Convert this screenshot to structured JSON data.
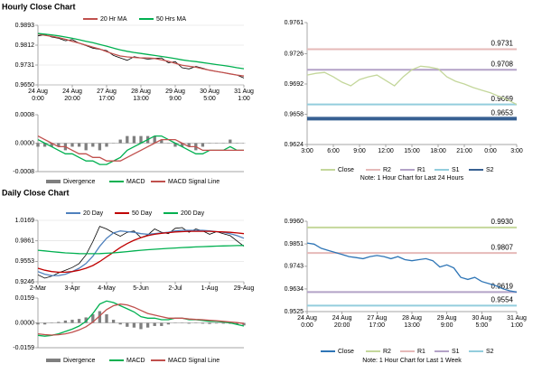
{
  "sections": [
    {
      "title": "Hourly Close Chart"
    },
    {
      "title": "Daily Close Chart"
    }
  ],
  "chart_data": [
    {
      "type": "line",
      "grid": true,
      "categories": [
        "24 Aug 0:00",
        null,
        null,
        null,
        null,
        "24 Aug 20:00",
        null,
        null,
        null,
        null,
        "27 Aug 17:00",
        null,
        null,
        null,
        null,
        "28 Aug 13:00",
        null,
        null,
        null,
        null,
        "29 Aug 9:00",
        null,
        null,
        null,
        null,
        "30 Aug 5:00",
        null,
        null,
        null,
        null,
        "31 Aug 1:00"
      ],
      "ylim": [
        0.965,
        0.9893
      ],
      "yticks": [
        {
          "value": 0.965,
          "label": "0.9650"
        },
        0.9731,
        0.9812,
        0.9893
      ],
      "series": [
        {
          "color": "#000000",
          "values": [
            0.985,
            0.9855,
            0.9845,
            0.984,
            0.983,
            0.9835,
            0.982,
            0.981,
            0.98,
            0.9795,
            0.979,
            0.977,
            0.976,
            0.975,
            0.9765,
            0.976,
            0.9755,
            0.9758,
            0.976,
            0.974,
            0.9745,
            0.972,
            0.9715,
            0.9725,
            0.9718,
            0.971,
            0.9705,
            0.97,
            0.9695,
            0.969,
            0.9678
          ]
        },
        {
          "name": "20 Hr MA",
          "color": "#c0504d",
          "values": [
            0.9858,
            0.9852,
            0.9848,
            0.9843,
            0.9836,
            0.9828,
            0.982,
            0.9812,
            0.9804,
            0.9796,
            0.9786,
            0.9776,
            0.9768,
            0.9764,
            0.9762,
            0.976,
            0.976,
            0.9758,
            0.9752,
            0.9746,
            0.9738,
            0.973,
            0.9726,
            0.9722,
            0.9716,
            0.971,
            0.9705,
            0.97,
            0.9695,
            0.969,
            0.9686
          ]
        },
        {
          "name": "50 Hrs MA",
          "color": "#00b050",
          "values": [
            0.986,
            0.9857,
            0.9854,
            0.985,
            0.9845,
            0.984,
            0.9834,
            0.9828,
            0.9822,
            0.9815,
            0.9808,
            0.98,
            0.9793,
            0.9787,
            0.9782,
            0.9778,
            0.9774,
            0.977,
            0.9766,
            0.9762,
            0.9757,
            0.9752,
            0.9748,
            0.9745,
            0.9741,
            0.9737,
            0.9733,
            0.9729,
            0.9725,
            0.972,
            0.9716
          ]
        }
      ]
    },
    {
      "type": "line",
      "grid": false,
      "ylim": [
        -0.0008,
        0.0008
      ],
      "yticks": [
        -0.0008,
        {
          "value": 0,
          "label": "0.0000"
        },
        0.0008
      ],
      "series": [
        {
          "name": "Divergence",
          "kind": "bar",
          "color": "#7f7f7f",
          "values": [
            -0.0001,
            -0.0001,
            -0.0001,
            -0.0001,
            -0.0002,
            -0.0001,
            -0.0001,
            -0.0002,
            -0.0001,
            -0.0002,
            -0.0001,
            0,
            0.0001,
            0.0002,
            0.0002,
            0.0002,
            0.0002,
            0.0002,
            0.0001,
            0,
            -0.0001,
            -0.0001,
            -0.0001,
            -0.0002,
            -0.0001,
            0,
            0,
            0,
            0.0001,
            0,
            0
          ]
        },
        {
          "name": "MACD",
          "color": "#00b050",
          "values": [
            0.0001,
            0,
            -0.0001,
            -0.0002,
            -0.0003,
            -0.0003,
            -0.0004,
            -0.0005,
            -0.0005,
            -0.0006,
            -0.0006,
            -0.0005,
            -0.0004,
            -0.0002,
            -0.0001,
            0,
            0.0001,
            0.0002,
            0.0002,
            0.0001,
            0,
            -0.0001,
            -0.0002,
            -0.0003,
            -0.0003,
            -0.0002,
            -0.0002,
            -0.0002,
            -0.0001,
            -0.0002,
            -0.0002
          ]
        },
        {
          "name": "MACD Signal Line",
          "color": "#c0504d",
          "values": [
            0.0002,
            0.0001,
            0,
            -0.0001,
            -0.0001,
            -0.0002,
            -0.0003,
            -0.0003,
            -0.0004,
            -0.0004,
            -0.0005,
            -0.0005,
            -0.0005,
            -0.0004,
            -0.0003,
            -0.0002,
            -0.0001,
            0,
            0.0001,
            0.0001,
            0.0001,
            0,
            -0.0001,
            -0.0001,
            -0.0002,
            -0.0002,
            -0.0002,
            -0.0002,
            -0.0002,
            -0.0002,
            -0.0002
          ]
        }
      ]
    },
    {
      "type": "line",
      "grid": false,
      "note": "Note: 1 Hour Chart for Last 24 Hours",
      "categories": [
        "3:00",
        null,
        null,
        "6:00",
        null,
        null,
        "9:00",
        null,
        null,
        "12:00",
        null,
        null,
        "15:00",
        null,
        null,
        "18:00",
        null,
        null,
        "21:00",
        null,
        null,
        "0:00",
        null,
        null,
        "3:00"
      ],
      "ylim": [
        0.9624,
        0.9761
      ],
      "yticks": [
        0.9624,
        0.9658,
        0.9692,
        0.9726,
        0.9761
      ],
      "series": [
        {
          "name": "Close",
          "color": "#c4d79b",
          "values": [
            0.9702,
            0.9704,
            0.9705,
            0.97,
            0.9694,
            0.969,
            0.9697,
            0.97,
            0.9702,
            0.9696,
            0.969,
            0.97,
            0.9708,
            0.9712,
            0.9711,
            0.9709,
            0.97,
            0.9695,
            0.9692,
            0.9688,
            0.9685,
            0.9682,
            0.9678,
            0.9674,
            0.9669
          ]
        }
      ],
      "levels": [
        {
          "name": "R2",
          "color": "#e6b9b8",
          "value": 0.9731
        },
        {
          "name": "R1",
          "color": "#b3a2c7",
          "value": 0.9708
        },
        {
          "name": "S1",
          "color": "#93cddd",
          "value": 0.9669
        },
        {
          "name": "S2",
          "color": "#376092",
          "value": 0.9653
        }
      ]
    },
    {
      "type": "line",
      "grid": true,
      "categories": [
        "2-Mar",
        null,
        null,
        null,
        null,
        "3-Apr",
        null,
        null,
        null,
        null,
        "4-May",
        null,
        null,
        null,
        null,
        "5-Jun",
        null,
        null,
        null,
        null,
        "2-Jul",
        null,
        null,
        null,
        null,
        "1-Aug",
        null,
        null,
        null,
        null,
        "29-Aug"
      ],
      "ylim": [
        0.9246,
        1.0169
      ],
      "yticks": [
        0.9246,
        0.9553,
        0.9861,
        1.0169
      ],
      "series": [
        {
          "color": "#000000",
          "values": [
            0.935,
            0.93,
            0.933,
            0.938,
            0.942,
            0.946,
            0.952,
            0.965,
            0.985,
            1.008,
            1.004,
            0.998,
            0.993,
            0.999,
            1.001,
            0.991,
            0.995,
            1.004,
            0.999,
            0.997,
            1.005,
            1.006,
            0.999,
            1.004,
            1.001,
            0.996,
            1.0,
            0.997,
            0.994,
            0.986,
            0.978
          ]
        },
        {
          "name": "20 Day",
          "color": "#4f81bd",
          "values": [
            0.94,
            0.936,
            0.934,
            0.934,
            0.936,
            0.94,
            0.945,
            0.952,
            0.963,
            0.978,
            0.99,
            0.998,
            1.001,
            1.0,
            0.999,
            0.997,
            0.996,
            0.997,
            0.998,
            0.999,
            1.001,
            1.002,
            1.002,
            1.002,
            1.002,
            1.001,
            1.0,
            0.999,
            0.997,
            0.994,
            0.99
          ]
        },
        {
          "name": "50 Day",
          "color": "#c00000",
          "values": [
            0.945,
            0.942,
            0.94,
            0.939,
            0.939,
            0.94,
            0.942,
            0.945,
            0.949,
            0.955,
            0.962,
            0.969,
            0.976,
            0.982,
            0.987,
            0.991,
            0.994,
            0.996,
            0.9975,
            0.9985,
            0.9995,
            1.0,
            1.0005,
            1.0005,
            1.0005,
            1.0005,
            1.0,
            0.9995,
            0.999,
            0.998,
            0.997
          ]
        },
        {
          "name": "200 Day",
          "color": "#00b050",
          "values": [
            0.972,
            0.971,
            0.97,
            0.969,
            0.968,
            0.9675,
            0.967,
            0.9668,
            0.9668,
            0.967,
            0.9675,
            0.968,
            0.969,
            0.97,
            0.971,
            0.972,
            0.9728,
            0.9735,
            0.9742,
            0.9748,
            0.9754,
            0.976,
            0.9765,
            0.977,
            0.9774,
            0.9778,
            0.9782,
            0.9785,
            0.9788,
            0.979,
            0.9792
          ]
        }
      ]
    },
    {
      "type": "line",
      "grid": false,
      "ylim": [
        -0.0159,
        0.0159
      ],
      "yticks": [
        -0.0159,
        {
          "value": 0,
          "label": "0.0000"
        },
        0.0159
      ],
      "series": [
        {
          "name": "Divergence",
          "kind": "bar",
          "color": "#7f7f7f",
          "values": [
            -0.001,
            -0.001,
            -0.0002,
            0.0006,
            0.0015,
            0.002,
            0.0025,
            0.0035,
            0.0055,
            0.0075,
            0.0055,
            0.002,
            -0.001,
            -0.0025,
            -0.003,
            -0.004,
            -0.003,
            -0.002,
            -0.002,
            -0.001,
            0,
            0,
            -0.0005,
            -0.0002,
            -0.0005,
            -0.0007,
            -0.0004,
            -0.0005,
            -0.0006,
            -0.0012,
            -0.0016
          ]
        },
        {
          "name": "MACD",
          "color": "#00b050",
          "values": [
            -0.008,
            -0.0085,
            -0.008,
            -0.007,
            -0.0055,
            -0.004,
            -0.002,
            0.001,
            0.006,
            0.012,
            0.014,
            0.013,
            0.011,
            0.009,
            0.007,
            0.004,
            0.003,
            0.003,
            0.002,
            0.002,
            0.003,
            0.003,
            0.002,
            0.002,
            0.0015,
            0.001,
            0.001,
            0.0005,
            0,
            -0.001,
            -0.002
          ]
        },
        {
          "name": "MACD Signal Line",
          "color": "#c0504d",
          "values": [
            -0.007,
            -0.0075,
            -0.0078,
            -0.0076,
            -0.007,
            -0.006,
            -0.0045,
            -0.0025,
            0.0005,
            0.0045,
            0.0085,
            0.011,
            0.012,
            0.0115,
            0.01,
            0.008,
            0.006,
            0.005,
            0.004,
            0.003,
            0.003,
            0.003,
            0.0025,
            0.0022,
            0.002,
            0.0017,
            0.0014,
            0.001,
            0.0006,
            0.0002,
            -0.0004
          ]
        }
      ]
    },
    {
      "type": "line",
      "grid": false,
      "note": "Note: 1 Hour Chart for Last 1 Week",
      "categories": [
        "24 Aug 0:00",
        null,
        null,
        null,
        null,
        "24 Aug 20:00",
        null,
        null,
        null,
        null,
        "27 Aug 17:00",
        null,
        null,
        null,
        null,
        "28 Aug 13:00",
        null,
        null,
        null,
        null,
        "29 Aug 9:00",
        null,
        null,
        null,
        null,
        "30 Aug 5:00",
        null,
        null,
        null,
        null,
        "31 Aug 1:00"
      ],
      "ylim": [
        0.9525,
        0.996
      ],
      "yticks": [
        0.9525,
        0.9634,
        0.9743,
        0.9851,
        {
          "value": 0.996,
          "label": "0.9960"
        }
      ],
      "series": [
        {
          "name": "Close",
          "color": "#2e75b6",
          "values": [
            0.9855,
            0.985,
            0.983,
            0.982,
            0.981,
            0.98,
            0.979,
            0.9785,
            0.978,
            0.979,
            0.9795,
            0.979,
            0.978,
            0.979,
            0.9775,
            0.977,
            0.9775,
            0.978,
            0.977,
            0.974,
            0.975,
            0.9735,
            0.969,
            0.968,
            0.969,
            0.967,
            0.966,
            0.965,
            0.9635,
            0.9625,
            0.9619
          ]
        }
      ],
      "levels": [
        {
          "name": "R2",
          "color": "#c4d79b",
          "value": 0.993,
          "value_label": "0.9930"
        },
        {
          "name": "R1",
          "color": "#e6b9b8",
          "value": 0.9807
        },
        {
          "name": "S1",
          "color": "#b3a2c7",
          "value": 0.9619
        },
        {
          "name": "S2",
          "color": "#93cddd",
          "value": 0.9554
        }
      ]
    }
  ]
}
